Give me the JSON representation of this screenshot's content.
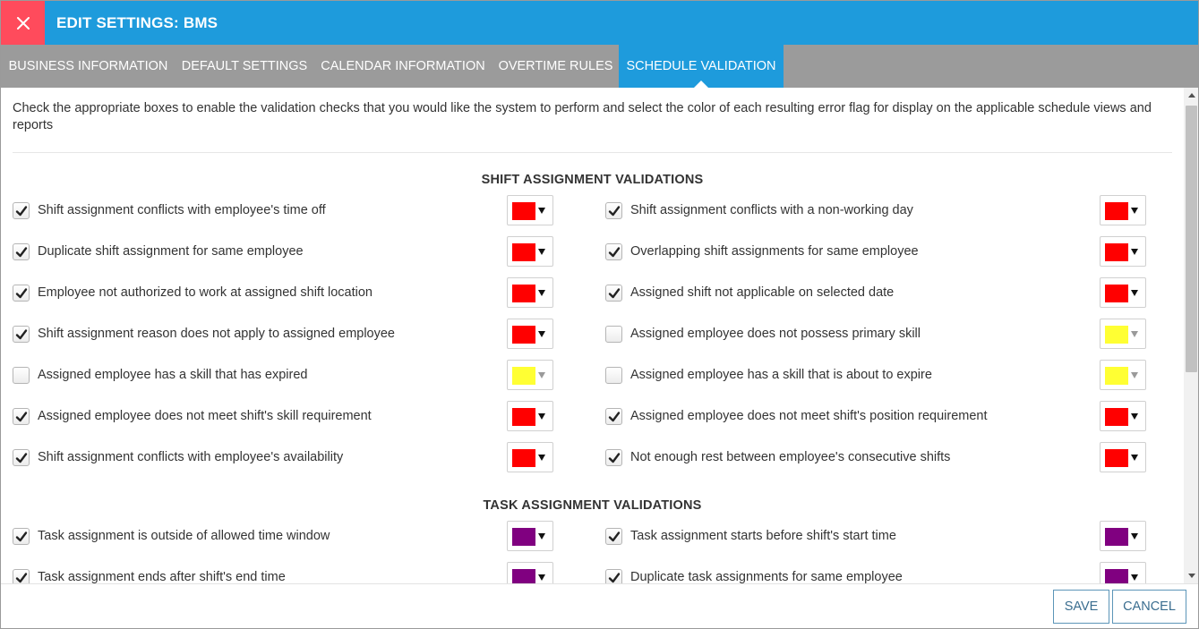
{
  "header": {
    "title": "EDIT SETTINGS: BMS",
    "colors": {
      "header_bg": "#1e9bdc",
      "close_bg": "#ff4b5c"
    }
  },
  "tabs": [
    {
      "label": "BUSINESS INFORMATION",
      "active": false
    },
    {
      "label": "DEFAULT SETTINGS",
      "active": false
    },
    {
      "label": "CALENDAR INFORMATION",
      "active": false
    },
    {
      "label": "OVERTIME RULES",
      "active": false
    },
    {
      "label": "SCHEDULE VALIDATION",
      "active": true
    }
  ],
  "intro": "Check the appropriate boxes to enable the validation checks that you would like the system to perform and select the color of each resulting error flag for display on the applicable schedule views and reports",
  "sections": [
    {
      "title": "SHIFT ASSIGNMENT VALIDATIONS",
      "items": [
        {
          "label": "Shift assignment conflicts with employee's time off",
          "checked": true,
          "color": "#ff0000"
        },
        {
          "label": "Shift assignment conflicts with a non-working day",
          "checked": true,
          "color": "#ff0000"
        },
        {
          "label": "Duplicate shift assignment for same employee",
          "checked": true,
          "color": "#ff0000"
        },
        {
          "label": "Overlapping shift assignments for same employee",
          "checked": true,
          "color": "#ff0000"
        },
        {
          "label": "Employee not authorized to work at assigned shift location",
          "checked": true,
          "color": "#ff0000"
        },
        {
          "label": "Assigned shift not applicable on selected date",
          "checked": true,
          "color": "#ff0000"
        },
        {
          "label": "Shift assignment reason does not apply to assigned employee",
          "checked": true,
          "color": "#ff0000"
        },
        {
          "label": "Assigned employee does not possess primary skill",
          "checked": false,
          "color": "#ffff33"
        },
        {
          "label": "Assigned employee has a skill that has expired",
          "checked": false,
          "color": "#ffff33"
        },
        {
          "label": "Assigned employee has a skill that is about to expire",
          "checked": false,
          "color": "#ffff33"
        },
        {
          "label": "Assigned employee does not meet shift's skill requirement",
          "checked": true,
          "color": "#ff0000"
        },
        {
          "label": "Assigned employee does not meet shift's position requirement",
          "checked": true,
          "color": "#ff0000"
        },
        {
          "label": "Shift assignment conflicts with employee's availability",
          "checked": true,
          "color": "#ff0000"
        },
        {
          "label": "Not enough rest between employee's consecutive shifts",
          "checked": true,
          "color": "#ff0000"
        }
      ]
    },
    {
      "title": "TASK ASSIGNMENT VALIDATIONS",
      "items": [
        {
          "label": "Task assignment is outside of allowed time window",
          "checked": true,
          "color": "#800080"
        },
        {
          "label": "Task assignment starts before shift's start time",
          "checked": true,
          "color": "#800080"
        },
        {
          "label": "Task assignment ends after shift's end time",
          "checked": true,
          "color": "#800080"
        },
        {
          "label": "Duplicate task assignments for same employee",
          "checked": true,
          "color": "#800080"
        }
      ]
    }
  ],
  "footer": {
    "save_label": "SAVE",
    "cancel_label": "CANCEL"
  }
}
